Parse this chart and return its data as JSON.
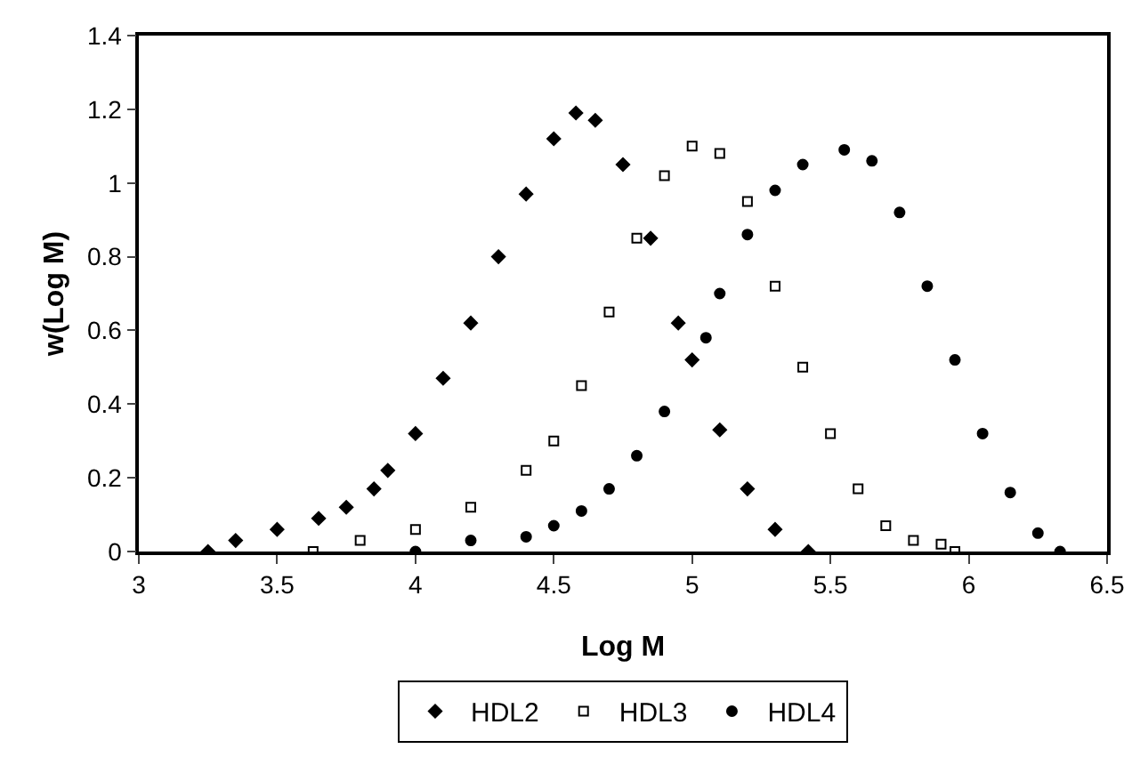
{
  "chart_data": {
    "type": "scatter",
    "xlabel": "Log M",
    "ylabel": "w(Log M)",
    "xlim": [
      3,
      6.5
    ],
    "ylim": [
      0,
      1.4
    ],
    "xticks": [
      3,
      3.5,
      4,
      4.5,
      5,
      5.5,
      6,
      6.5
    ],
    "yticks": [
      0,
      0.2,
      0.4,
      0.6,
      0.8,
      1,
      1.2,
      1.4
    ],
    "grid": false,
    "legend": "bottom",
    "series": [
      {
        "name": "HDL2",
        "color": "#000000",
        "marker": "diamond",
        "x": [
          3.25,
          3.35,
          3.5,
          3.65,
          3.75,
          3.85,
          3.9,
          4.0,
          4.1,
          4.2,
          4.3,
          4.4,
          4.5,
          4.58,
          4.65,
          4.75,
          4.85,
          4.95,
          5.0,
          5.1,
          5.2,
          5.3,
          5.42
        ],
        "values": [
          0,
          0.03,
          0.06,
          0.09,
          0.12,
          0.17,
          0.22,
          0.32,
          0.47,
          0.62,
          0.8,
          0.97,
          1.12,
          1.19,
          1.17,
          1.05,
          0.85,
          0.62,
          0.52,
          0.33,
          0.17,
          0.06,
          0
        ]
      },
      {
        "name": "HDL3",
        "color": "#000000",
        "marker": "square",
        "x": [
          3.63,
          3.8,
          4.0,
          4.2,
          4.4,
          4.5,
          4.6,
          4.7,
          4.8,
          4.9,
          5.0,
          5.1,
          5.2,
          5.3,
          5.4,
          5.5,
          5.6,
          5.7,
          5.8,
          5.9,
          5.95
        ],
        "values": [
          0,
          0.03,
          0.06,
          0.12,
          0.22,
          0.3,
          0.45,
          0.65,
          0.85,
          1.02,
          1.1,
          1.08,
          0.95,
          0.72,
          0.5,
          0.32,
          0.17,
          0.07,
          0.03,
          0.02,
          0
        ]
      },
      {
        "name": "HDL4",
        "color": "#000000",
        "marker": "circle",
        "x": [
          4.0,
          4.2,
          4.4,
          4.5,
          4.6,
          4.7,
          4.8,
          4.9,
          5.05,
          5.1,
          5.2,
          5.3,
          5.4,
          5.55,
          5.65,
          5.75,
          5.85,
          5.95,
          6.05,
          6.15,
          6.25,
          6.33
        ],
        "values": [
          0,
          0.03,
          0.04,
          0.07,
          0.11,
          0.17,
          0.26,
          0.38,
          0.58,
          0.7,
          0.86,
          0.98,
          1.05,
          1.09,
          1.06,
          0.92,
          0.72,
          0.52,
          0.32,
          0.16,
          0.05,
          0
        ]
      }
    ]
  }
}
